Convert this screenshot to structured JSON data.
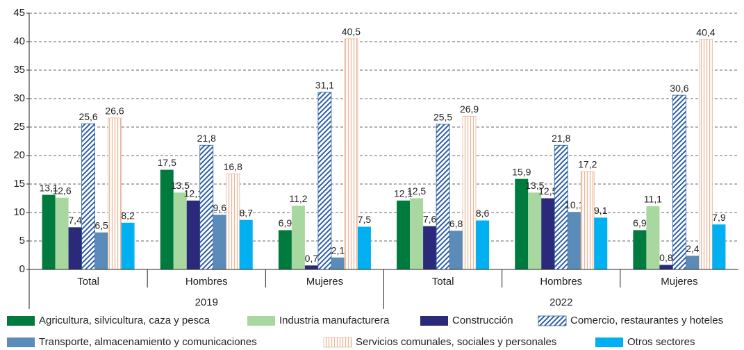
{
  "chart_data": {
    "type": "bar",
    "categories": [
      "Total",
      "Hombres",
      "Mujeres",
      "Total",
      "Hombres",
      "Mujeres"
    ],
    "groups": [
      "2019",
      "2022"
    ],
    "ylim": [
      0,
      45
    ],
    "yticks": [
      0,
      5,
      10,
      15,
      20,
      25,
      30,
      35,
      40,
      45
    ],
    "grid": true,
    "series": [
      {
        "name": "Agricultura, silvicultura, caza y pesca",
        "color": "#007a3d",
        "values": [
          13.1,
          17.5,
          6.9,
          12.1,
          15.9,
          6.9
        ],
        "value_labels": [
          "13,1",
          "17,5",
          "6,9",
          "12,1",
          "15,9",
          "6,9"
        ]
      },
      {
        "name": "Industria manufacturera",
        "color": "#a8d8a0",
        "values": [
          12.6,
          13.5,
          11.2,
          12.5,
          13.5,
          11.1
        ],
        "value_labels": [
          "12,6",
          "13,5",
          "11,2",
          "12,5",
          "13,5",
          "11,1"
        ]
      },
      {
        "name": "Construcción",
        "color": "#2b2a7a",
        "values": [
          7.4,
          12.1,
          0.7,
          7.6,
          12.5,
          0.8
        ],
        "value_labels": [
          "7,4",
          "12,1",
          "0,7",
          "7,6",
          "12,5",
          "0,8"
        ]
      },
      {
        "name": "Comercio, restaurantes y hoteles",
        "color": "#2a5ca8",
        "pattern": "diagonal",
        "values": [
          25.6,
          21.8,
          31.1,
          25.5,
          21.8,
          30.6
        ],
        "value_labels": [
          "25,6",
          "21,8",
          "31,1",
          "25,5",
          "21,8",
          "30,6"
        ]
      },
      {
        "name": "Transporte, almacenamiento y comunicaciones",
        "color": "#5b8bb8",
        "values": [
          6.5,
          9.6,
          2.1,
          6.8,
          10.1,
          2.4
        ],
        "value_labels": [
          "6,5",
          "9,6",
          "2,1",
          "6,8",
          "10,1",
          "2,4"
        ]
      },
      {
        "name": "Servicios comunales, sociales y personales",
        "color": "#e8b89a",
        "pattern": "vertical",
        "values": [
          26.6,
          16.8,
          40.5,
          26.9,
          17.2,
          40.4
        ],
        "value_labels": [
          "26,6",
          "16,8",
          "40,5",
          "26,9",
          "17,2",
          "40,4"
        ]
      },
      {
        "name": "Otros sectores",
        "color": "#00b0f0",
        "values": [
          8.2,
          8.7,
          7.5,
          8.6,
          9.1,
          7.9
        ],
        "value_labels": [
          "8,2",
          "8,7",
          "7,5",
          "8,6",
          "9,1",
          "7,9"
        ]
      }
    ]
  }
}
